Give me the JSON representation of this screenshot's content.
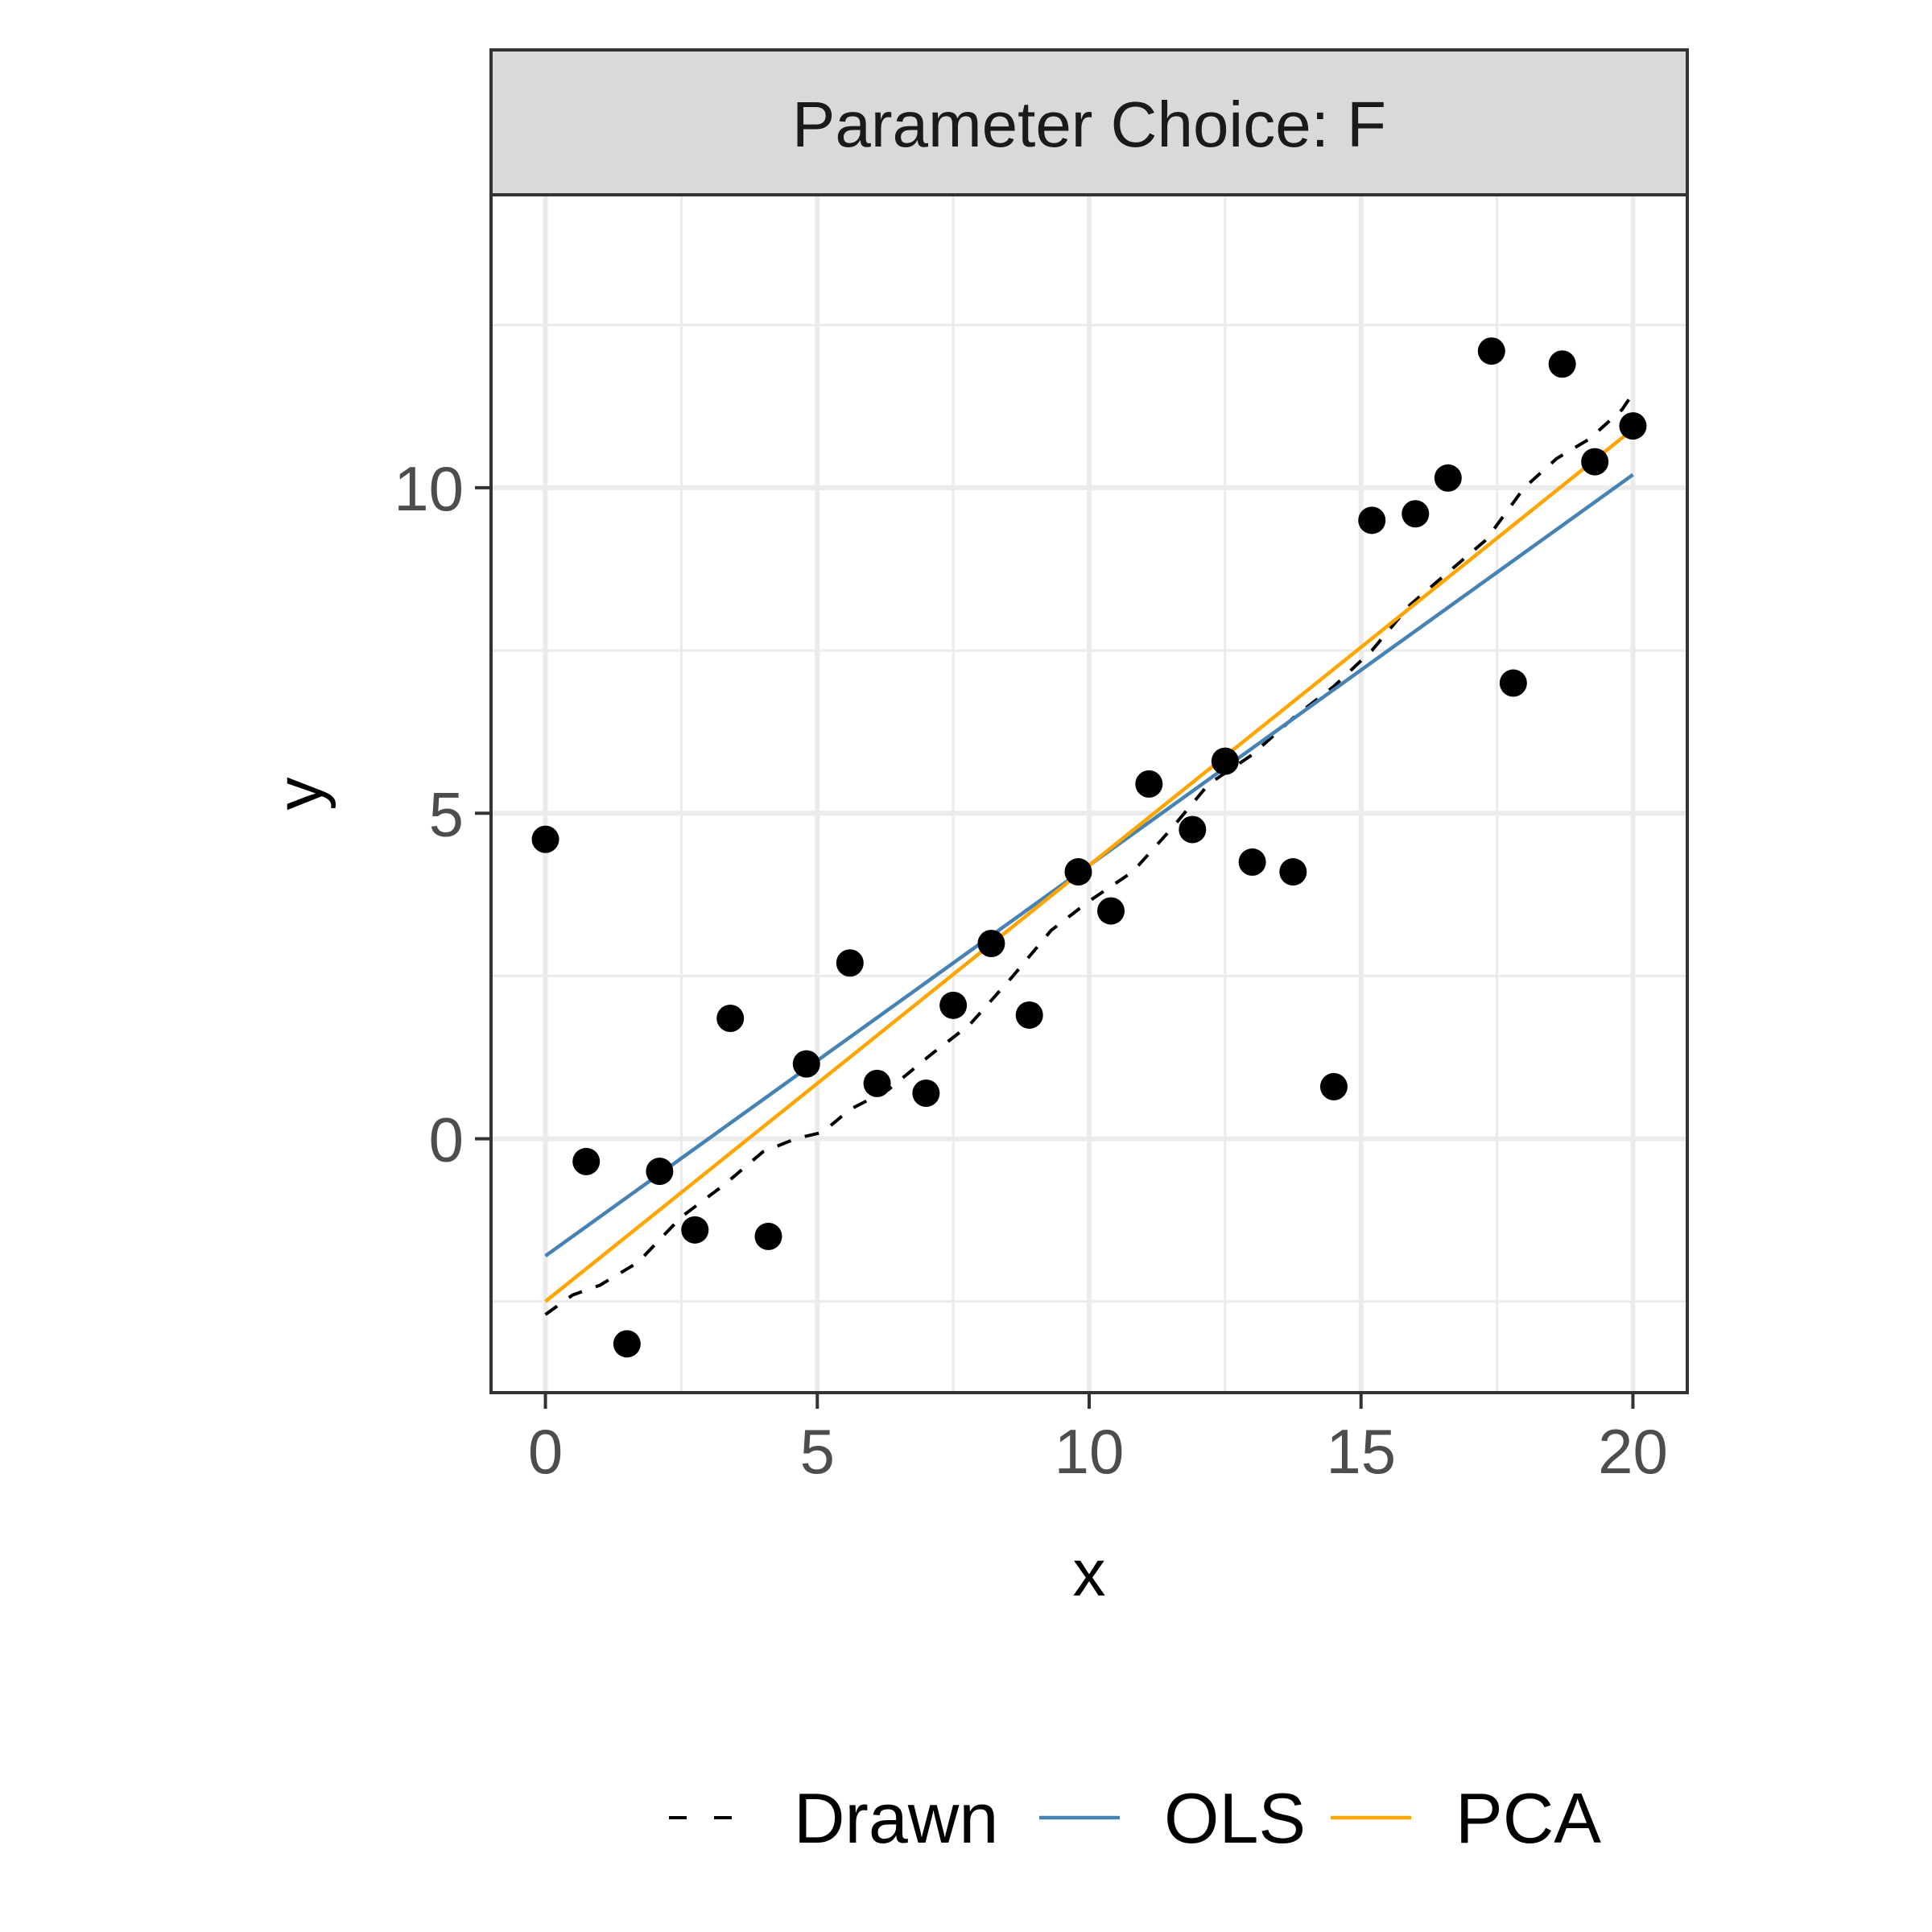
{
  "chart_data": {
    "type": "scatter",
    "facet_label": "Parameter Choice: F",
    "xlabel": "x",
    "ylabel": "y",
    "xlim": [
      -1,
      21
    ],
    "ylim": [
      -3.9,
      14.5
    ],
    "x_ticks": [
      0,
      5,
      10,
      15,
      20
    ],
    "y_ticks": [
      0,
      5,
      10
    ],
    "grid": true,
    "legend_position": "bottom",
    "points": [
      {
        "x": 0.0,
        "y": 4.6
      },
      {
        "x": 0.75,
        "y": -0.35
      },
      {
        "x": 1.5,
        "y": -3.15
      },
      {
        "x": 2.1,
        "y": -0.5
      },
      {
        "x": 2.75,
        "y": -1.4
      },
      {
        "x": 3.4,
        "y": 1.85
      },
      {
        "x": 4.1,
        "y": -1.5
      },
      {
        "x": 4.8,
        "y": 1.15
      },
      {
        "x": 5.6,
        "y": 2.7
      },
      {
        "x": 6.1,
        "y": 0.85
      },
      {
        "x": 7.0,
        "y": 0.7
      },
      {
        "x": 7.5,
        "y": 2.05
      },
      {
        "x": 8.2,
        "y": 3.0
      },
      {
        "x": 8.9,
        "y": 1.9
      },
      {
        "x": 9.8,
        "y": 4.1
      },
      {
        "x": 10.4,
        "y": 3.5
      },
      {
        "x": 11.1,
        "y": 5.45
      },
      {
        "x": 11.9,
        "y": 4.75
      },
      {
        "x": 12.5,
        "y": 5.8
      },
      {
        "x": 13.0,
        "y": 4.25
      },
      {
        "x": 13.75,
        "y": 4.1
      },
      {
        "x": 14.5,
        "y": 0.8
      },
      {
        "x": 15.2,
        "y": 9.5
      },
      {
        "x": 16.0,
        "y": 9.6
      },
      {
        "x": 16.6,
        "y": 10.15
      },
      {
        "x": 17.4,
        "y": 12.1
      },
      {
        "x": 17.8,
        "y": 7.0
      },
      {
        "x": 18.7,
        "y": 11.9
      },
      {
        "x": 19.3,
        "y": 10.4
      },
      {
        "x": 20.0,
        "y": 10.95
      }
    ],
    "series": [
      {
        "name": "Drawn",
        "color": "#000000",
        "style": "dashed",
        "x": [
          0,
          0.5,
          1.0,
          1.7,
          2.5,
          3.3,
          4.0,
          4.6,
          5.1,
          5.6,
          6.3,
          7.1,
          7.8,
          8.6,
          9.3,
          10.0,
          10.8,
          11.5,
          12.2,
          13.0,
          13.8,
          14.5,
          15.2,
          15.9,
          16.6,
          17.3,
          18.0,
          18.6,
          19.2,
          19.8,
          20.0
        ],
        "y": [
          -2.7,
          -2.4,
          -2.25,
          -1.9,
          -1.2,
          -0.7,
          -0.2,
          0.0,
          0.1,
          0.45,
          0.75,
          1.3,
          1.75,
          2.5,
          3.2,
          3.65,
          4.1,
          4.75,
          5.45,
          5.9,
          6.5,
          6.95,
          7.5,
          8.2,
          8.7,
          9.2,
          10.0,
          10.45,
          10.75,
          11.2,
          11.45
        ]
      },
      {
        "name": "OLS",
        "color": "#4682b4",
        "style": "solid",
        "x": [
          0,
          20
        ],
        "y": [
          -1.8,
          10.2
        ]
      },
      {
        "name": "PCA",
        "color": "#ffa500",
        "style": "solid",
        "x": [
          0,
          20
        ],
        "y": [
          -2.5,
          10.9
        ]
      }
    ]
  }
}
